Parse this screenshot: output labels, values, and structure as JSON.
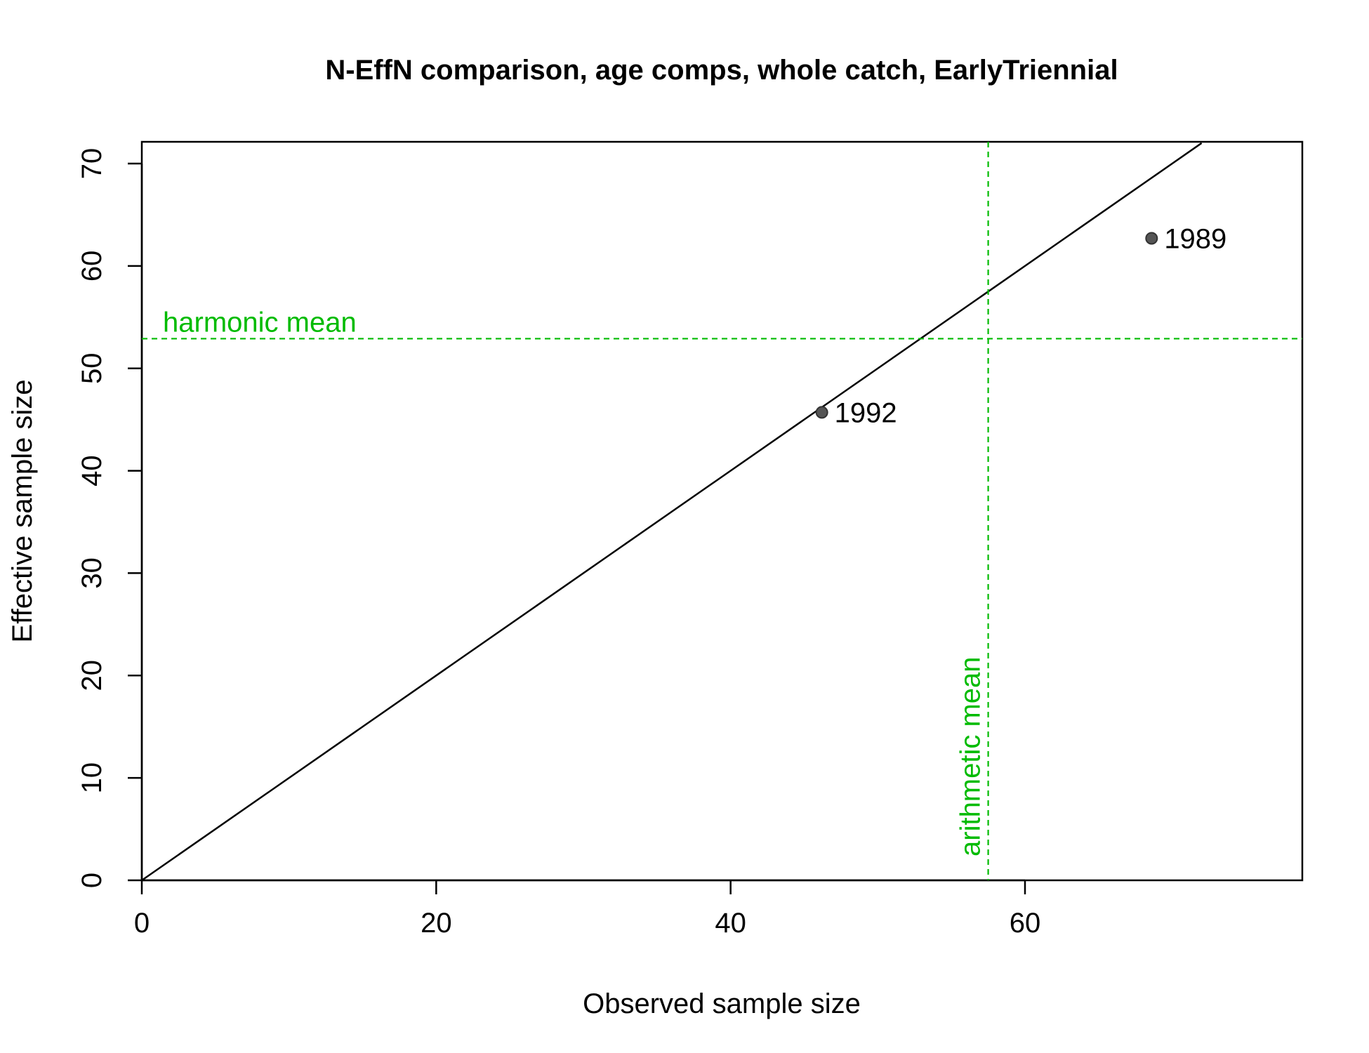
{
  "chart_data": {
    "type": "scatter",
    "title": "N-EffN comparison, age comps, whole catch, EarlyTriennial",
    "xlabel": "Observed sample size",
    "ylabel": "Effective sample size",
    "xlim": [
      0,
      79
    ],
    "ylim": [
      0,
      72
    ],
    "x_ticks": [
      0,
      20,
      40,
      60
    ],
    "y_ticks": [
      0,
      10,
      20,
      30,
      40,
      50,
      60,
      70
    ],
    "points": [
      {
        "label": "1992",
        "x": 46.2,
        "y": 45.7
      },
      {
        "label": "1989",
        "x": 68.6,
        "y": 62.7
      }
    ],
    "reference_lines": {
      "identity": {
        "type": "1:1 line",
        "color": "#000000"
      },
      "harmonic_mean": {
        "label": "harmonic mean",
        "value": 52.9,
        "orientation": "horizontal",
        "color": "#00bb00"
      },
      "arithmetic_mean": {
        "label": "arithmetic mean",
        "value": 57.5,
        "orientation": "vertical",
        "color": "#00bb00"
      }
    },
    "grid": false,
    "legend": "none"
  }
}
